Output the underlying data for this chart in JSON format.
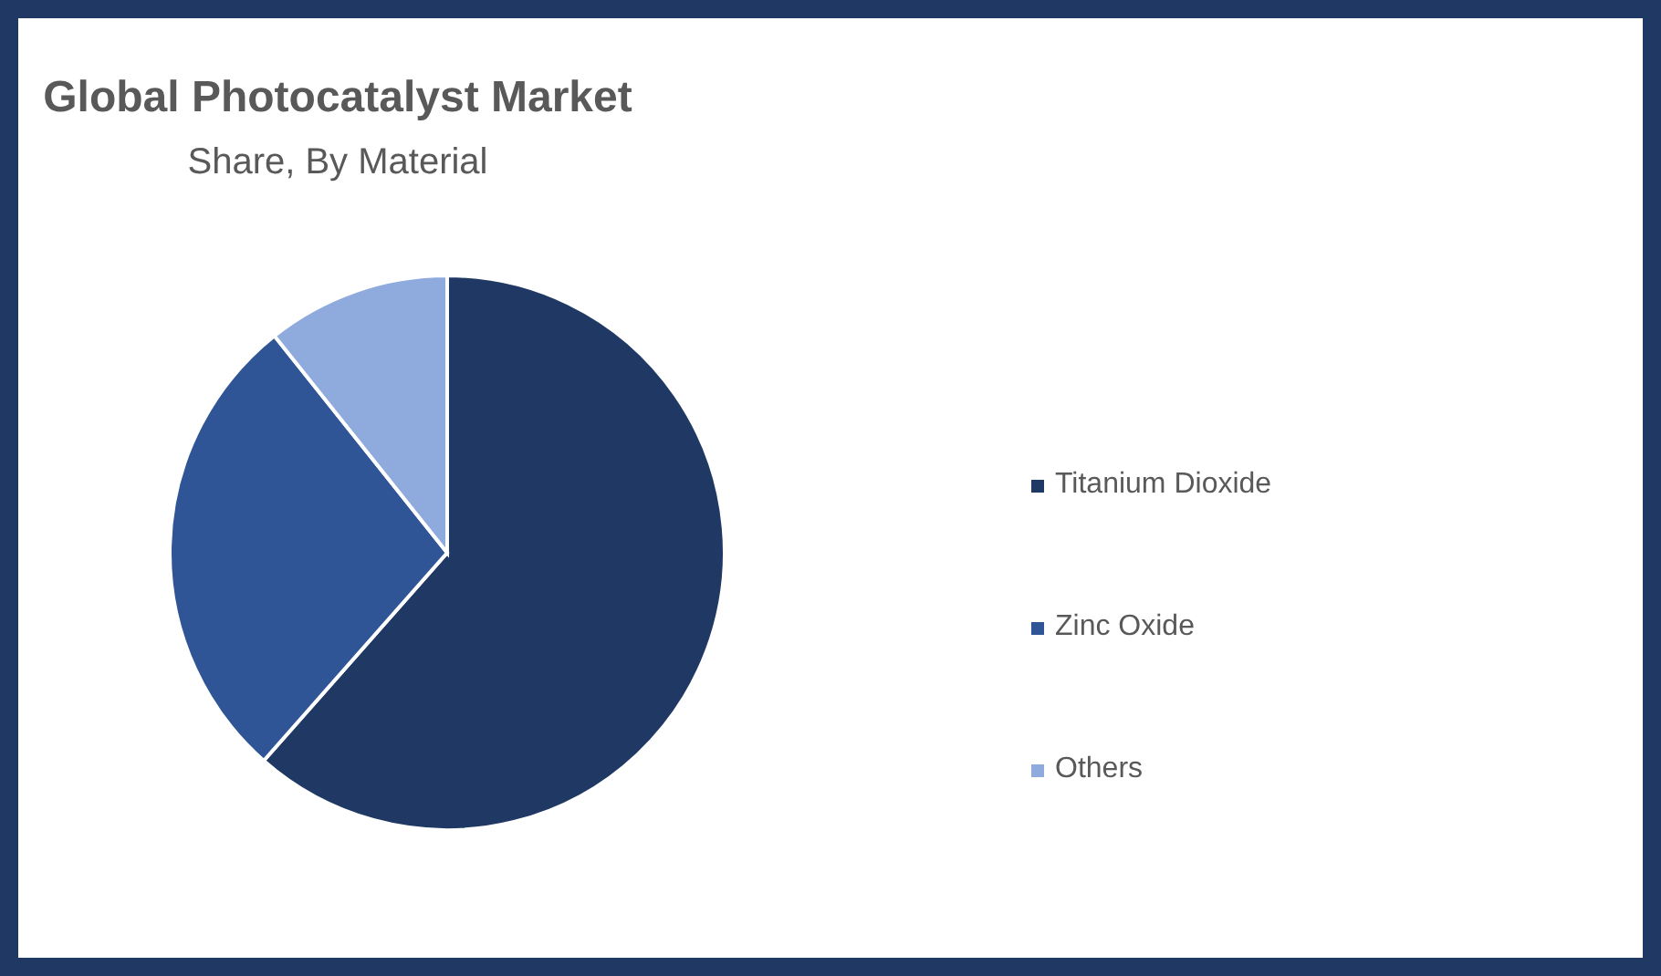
{
  "chart_data": {
    "type": "pie",
    "title": "Global Photocatalyst Market",
    "subtitle": "Share, By Material",
    "categories": [
      "Titanium Dioxide",
      "Zinc Oxide",
      "Others"
    ],
    "values": [
      61.5,
      27.8,
      10.7
    ],
    "colors": [
      "#1f3864",
      "#2f5597",
      "#8faadc"
    ],
    "legend": "right"
  }
}
